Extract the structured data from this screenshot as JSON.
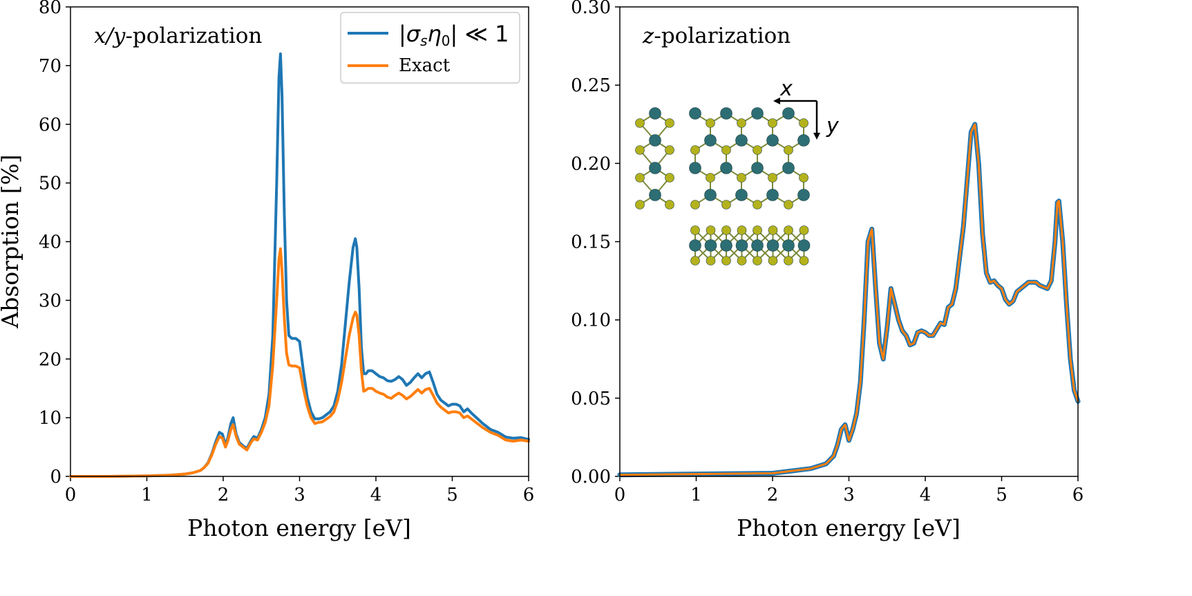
{
  "colors": {
    "series_blue": "#1f77b4",
    "series_orange": "#ff7f0e",
    "atom_metal": "#2c6e74",
    "atom_chalcogen": "#b4b21c",
    "bond": "#7a8a3a"
  },
  "chart_data": [
    {
      "type": "line",
      "title": "x/y-polarization",
      "title_italic_part": "x/y",
      "title_rest": "-polarization",
      "xlabel": "Photon energy [eV]",
      "ylabel": "Absorption [%]",
      "xlim": [
        0,
        6
      ],
      "ylim": [
        0,
        80
      ],
      "xticks": [
        "0",
        "1",
        "2",
        "3",
        "4",
        "5",
        "6"
      ],
      "yticks": [
        "0",
        "10",
        "20",
        "30",
        "40",
        "50",
        "60",
        "70",
        "80"
      ],
      "legend": {
        "location": "top-right",
        "entries": [
          {
            "label": "|σsη0| ≪ 1",
            "color": "#1f77b4"
          },
          {
            "label": "Exact",
            "color": "#ff7f0e"
          }
        ]
      },
      "series": [
        {
          "name": "|σsη0| ≪ 1",
          "color": "#1f77b4",
          "x": [
            0,
            0.5,
            1.0,
            1.3,
            1.5,
            1.6,
            1.7,
            1.75,
            1.8,
            1.85,
            1.9,
            1.95,
            1.99,
            2.03,
            2.06,
            2.1,
            2.13,
            2.17,
            2.21,
            2.26,
            2.31,
            2.36,
            2.4,
            2.45,
            2.5,
            2.55,
            2.6,
            2.65,
            2.7,
            2.73,
            2.75,
            2.77,
            2.8,
            2.83,
            2.86,
            2.9,
            2.95,
            3.0,
            3.05,
            3.1,
            3.15,
            3.2,
            3.25,
            3.3,
            3.4,
            3.45,
            3.5,
            3.55,
            3.6,
            3.65,
            3.7,
            3.73,
            3.75,
            3.78,
            3.81,
            3.84,
            3.87,
            3.9,
            3.95,
            4.0,
            4.05,
            4.1,
            4.15,
            4.2,
            4.25,
            4.3,
            4.35,
            4.4,
            4.45,
            4.5,
            4.55,
            4.6,
            4.65,
            4.7,
            4.75,
            4.8,
            4.85,
            4.9,
            4.95,
            5.0,
            5.05,
            5.1,
            5.15,
            5.2,
            5.25,
            5.3,
            5.35,
            5.4,
            5.5,
            5.6,
            5.7,
            5.8,
            5.9,
            6.0
          ],
          "y": [
            0.0,
            0.0,
            0.1,
            0.2,
            0.4,
            0.6,
            1.0,
            1.5,
            2.3,
            3.8,
            5.8,
            7.5,
            7.2,
            5.3,
            6.5,
            9.0,
            10.0,
            7.2,
            5.8,
            5.2,
            4.8,
            6.0,
            6.8,
            6.5,
            8.0,
            10.0,
            14.0,
            24.0,
            50.0,
            68.0,
            72.0,
            65.0,
            45.0,
            30.0,
            24.0,
            23.5,
            23.5,
            23.0,
            18.0,
            13.5,
            11.0,
            9.8,
            9.8,
            10.0,
            11.0,
            12.0,
            14.5,
            19.0,
            26.0,
            33.0,
            39.0,
            40.5,
            39.0,
            32.0,
            22.0,
            17.5,
            17.5,
            18.0,
            18.0,
            17.5,
            17.0,
            16.8,
            16.3,
            16.2,
            16.5,
            17.0,
            16.5,
            15.5,
            16.0,
            16.8,
            17.5,
            16.8,
            17.5,
            17.8,
            16.0,
            14.0,
            13.0,
            12.5,
            12.0,
            12.3,
            12.3,
            12.0,
            11.0,
            11.5,
            10.8,
            10.2,
            9.6,
            9.0,
            8.0,
            7.5,
            6.7,
            6.5,
            6.6,
            6.3
          ]
        },
        {
          "name": "Exact",
          "color": "#ff7f0e",
          "x": [
            0,
            0.5,
            1.0,
            1.3,
            1.5,
            1.6,
            1.7,
            1.75,
            1.8,
            1.85,
            1.9,
            1.95,
            1.99,
            2.03,
            2.06,
            2.1,
            2.13,
            2.17,
            2.21,
            2.26,
            2.31,
            2.36,
            2.4,
            2.45,
            2.5,
            2.55,
            2.6,
            2.65,
            2.7,
            2.73,
            2.75,
            2.77,
            2.8,
            2.83,
            2.86,
            2.9,
            2.95,
            3.0,
            3.05,
            3.1,
            3.15,
            3.2,
            3.25,
            3.3,
            3.4,
            3.45,
            3.5,
            3.55,
            3.6,
            3.65,
            3.7,
            3.73,
            3.75,
            3.78,
            3.81,
            3.84,
            3.87,
            3.9,
            3.95,
            4.0,
            4.05,
            4.1,
            4.15,
            4.2,
            4.25,
            4.3,
            4.35,
            4.4,
            4.45,
            4.5,
            4.55,
            4.6,
            4.65,
            4.7,
            4.75,
            4.8,
            4.85,
            4.9,
            4.95,
            5.0,
            5.05,
            5.1,
            5.15,
            5.2,
            5.25,
            5.3,
            5.35,
            5.4,
            5.5,
            5.6,
            5.7,
            5.8,
            5.9,
            6.0
          ],
          "y": [
            0.0,
            0.0,
            0.1,
            0.2,
            0.4,
            0.6,
            1.0,
            1.5,
            2.2,
            3.6,
            5.4,
            6.8,
            6.5,
            5.0,
            6.0,
            8.0,
            8.8,
            6.8,
            5.5,
            5.0,
            4.5,
            5.7,
            6.4,
            6.2,
            7.5,
            9.2,
            12.0,
            19.0,
            30.0,
            37.0,
            38.8,
            35.0,
            27.0,
            21.0,
            19.0,
            18.8,
            18.8,
            18.5,
            15.0,
            12.0,
            10.0,
            9.0,
            9.2,
            9.3,
            10.2,
            11.0,
            13.0,
            16.0,
            20.0,
            24.0,
            27.0,
            28.0,
            27.5,
            24.0,
            18.0,
            14.5,
            14.7,
            15.0,
            15.0,
            14.5,
            14.2,
            14.0,
            13.5,
            13.3,
            13.8,
            14.2,
            13.8,
            13.2,
            13.6,
            14.2,
            14.8,
            14.2,
            14.8,
            15.0,
            13.8,
            12.5,
            11.8,
            11.3,
            10.8,
            11.0,
            11.0,
            10.8,
            10.0,
            10.3,
            9.8,
            9.3,
            8.8,
            8.3,
            7.5,
            7.0,
            6.2,
            6.0,
            6.2,
            6.0
          ]
        }
      ]
    },
    {
      "type": "line",
      "title": "z-polarization",
      "title_italic_part": "z",
      "title_rest": "-polarization",
      "xlabel": "Photon energy [eV]",
      "ylabel": "",
      "xlim": [
        0,
        6
      ],
      "ylim": [
        0,
        0.3
      ],
      "xticks": [
        "0",
        "1",
        "2",
        "3",
        "4",
        "5",
        "6"
      ],
      "yticks": [
        "0.00",
        "0.05",
        "0.10",
        "0.15",
        "0.20",
        "0.25",
        "0.30"
      ],
      "series": [
        {
          "name": "|σsη0| ≪ 1",
          "color": "#1f77b4",
          "x": [
            0,
            1.0,
            2.0,
            2.5,
            2.7,
            2.8,
            2.85,
            2.9,
            2.95,
            3.0,
            3.05,
            3.1,
            3.15,
            3.2,
            3.25,
            3.3,
            3.35,
            3.4,
            3.45,
            3.5,
            3.55,
            3.6,
            3.65,
            3.7,
            3.75,
            3.8,
            3.85,
            3.9,
            3.95,
            4.0,
            4.05,
            4.1,
            4.15,
            4.2,
            4.25,
            4.3,
            4.35,
            4.4,
            4.5,
            4.55,
            4.6,
            4.65,
            4.7,
            4.75,
            4.8,
            4.85,
            4.9,
            4.95,
            5.0,
            5.05,
            5.1,
            5.15,
            5.2,
            5.25,
            5.3,
            5.35,
            5.4,
            5.45,
            5.5,
            5.55,
            5.6,
            5.65,
            5.7,
            5.73,
            5.75,
            5.8,
            5.85,
            5.9,
            5.95,
            6.0
          ],
          "y": [
            0.001,
            0.0015,
            0.002,
            0.005,
            0.008,
            0.013,
            0.02,
            0.03,
            0.033,
            0.023,
            0.03,
            0.04,
            0.06,
            0.1,
            0.15,
            0.158,
            0.12,
            0.085,
            0.075,
            0.095,
            0.12,
            0.11,
            0.1,
            0.093,
            0.09,
            0.084,
            0.085,
            0.092,
            0.093,
            0.092,
            0.09,
            0.09,
            0.094,
            0.098,
            0.097,
            0.108,
            0.11,
            0.12,
            0.16,
            0.19,
            0.22,
            0.225,
            0.2,
            0.155,
            0.13,
            0.124,
            0.125,
            0.122,
            0.12,
            0.113,
            0.11,
            0.112,
            0.118,
            0.12,
            0.122,
            0.124,
            0.124,
            0.124,
            0.122,
            0.121,
            0.12,
            0.125,
            0.15,
            0.175,
            0.176,
            0.15,
            0.11,
            0.075,
            0.055,
            0.048
          ]
        },
        {
          "name": "Exact",
          "color": "#ff7f0e",
          "x": [
            0,
            1.0,
            2.0,
            2.5,
            2.7,
            2.8,
            2.85,
            2.9,
            2.95,
            3.0,
            3.05,
            3.1,
            3.15,
            3.2,
            3.25,
            3.3,
            3.35,
            3.4,
            3.45,
            3.5,
            3.55,
            3.6,
            3.65,
            3.7,
            3.75,
            3.8,
            3.85,
            3.9,
            3.95,
            4.0,
            4.05,
            4.1,
            4.15,
            4.2,
            4.25,
            4.3,
            4.35,
            4.4,
            4.5,
            4.55,
            4.6,
            4.65,
            4.7,
            4.75,
            4.8,
            4.85,
            4.9,
            4.95,
            5.0,
            5.05,
            5.1,
            5.15,
            5.2,
            5.25,
            5.3,
            5.35,
            5.4,
            5.45,
            5.5,
            5.55,
            5.6,
            5.65,
            5.7,
            5.73,
            5.75,
            5.8,
            5.85,
            5.9,
            5.95,
            6.0
          ],
          "y": [
            0.001,
            0.0015,
            0.002,
            0.005,
            0.008,
            0.013,
            0.02,
            0.03,
            0.033,
            0.023,
            0.03,
            0.04,
            0.06,
            0.1,
            0.15,
            0.158,
            0.12,
            0.085,
            0.075,
            0.095,
            0.12,
            0.11,
            0.1,
            0.093,
            0.09,
            0.084,
            0.085,
            0.092,
            0.093,
            0.092,
            0.09,
            0.09,
            0.094,
            0.098,
            0.097,
            0.108,
            0.11,
            0.12,
            0.16,
            0.19,
            0.22,
            0.225,
            0.2,
            0.155,
            0.13,
            0.124,
            0.125,
            0.122,
            0.12,
            0.113,
            0.11,
            0.112,
            0.118,
            0.12,
            0.122,
            0.124,
            0.124,
            0.124,
            0.122,
            0.121,
            0.12,
            0.125,
            0.15,
            0.175,
            0.176,
            0.15,
            0.11,
            0.075,
            0.055,
            0.048
          ]
        }
      ]
    }
  ],
  "inset": {
    "axis_x_label": "x",
    "axis_y_label": "y",
    "top_view_structure": "crystal-top-view",
    "side_view_structure": "crystal-side-view"
  }
}
